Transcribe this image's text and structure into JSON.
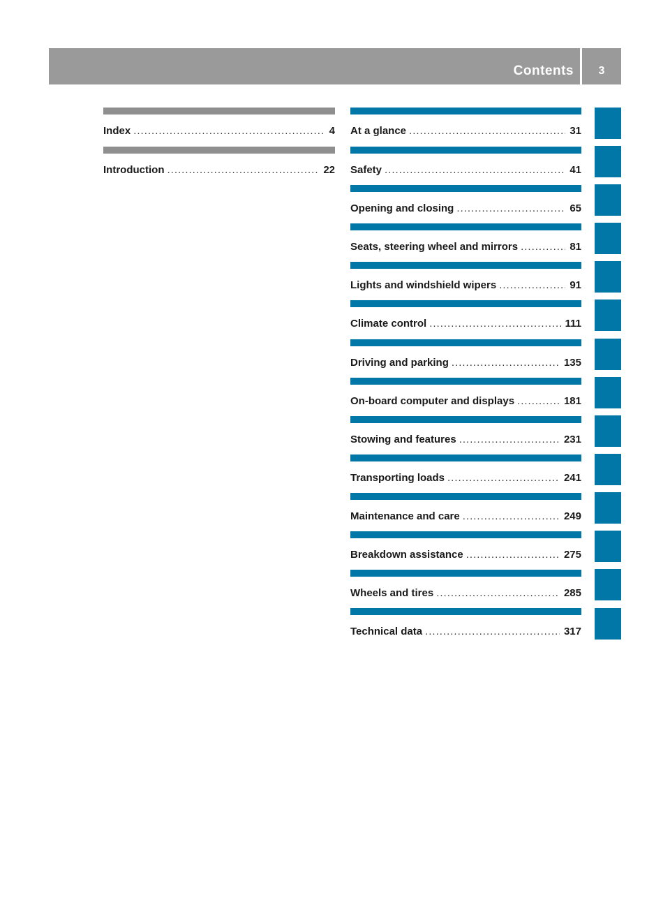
{
  "header": {
    "title": "Contents",
    "page_number": "3",
    "colors": {
      "band": "#9a9a9a",
      "text": "#ffffff"
    }
  },
  "accent_colors": {
    "grey": "#8f8f8f",
    "blue": "#0177a8"
  },
  "left_column": [
    {
      "label": "Index",
      "page": "4"
    },
    {
      "label": "Introduction",
      "page": "22"
    }
  ],
  "right_column": [
    {
      "label": "At a glance",
      "page": "31"
    },
    {
      "label": "Safety",
      "page": "41"
    },
    {
      "label": "Opening and closing",
      "page": "65"
    },
    {
      "label": "Seats, steering wheel and mirrors",
      "page": "81"
    },
    {
      "label": "Lights and windshield wipers",
      "page": "91"
    },
    {
      "label": "Climate control",
      "page": "111"
    },
    {
      "label": "Driving and parking",
      "page": "135"
    },
    {
      "label": "On-board computer and displays",
      "page": "181"
    },
    {
      "label": "Stowing and features",
      "page": "231"
    },
    {
      "label": "Transporting loads",
      "page": "241"
    },
    {
      "label": "Maintenance and care",
      "page": "249"
    },
    {
      "label": "Breakdown assistance",
      "page": "275"
    },
    {
      "label": "Wheels and tires",
      "page": "285"
    },
    {
      "label": "Technical data",
      "page": "317"
    }
  ]
}
